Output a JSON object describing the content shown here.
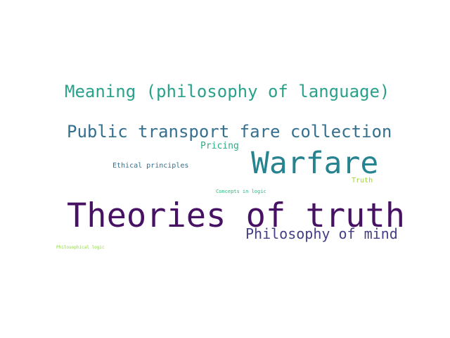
{
  "words": [
    {
      "text": "Meaning (philosophy of language)",
      "color": "#2aa18a"
    },
    {
      "text": "Public transport fare collection",
      "color": "#35708f"
    },
    {
      "text": "Pricing",
      "color": "#2cae82"
    },
    {
      "text": "Warfare",
      "color": "#26838f"
    },
    {
      "text": "Ethical principles",
      "color": "#35708f"
    },
    {
      "text": "Truth",
      "color": "#9fd33a"
    },
    {
      "text": "Concepts in logic",
      "color": "#2fb47c"
    },
    {
      "text": "Theories of truth",
      "color": "#471164"
    },
    {
      "text": "Philosophy of mind",
      "color": "#433e85"
    },
    {
      "text": "Philosophical logic",
      "color": "#8fd744"
    }
  ]
}
